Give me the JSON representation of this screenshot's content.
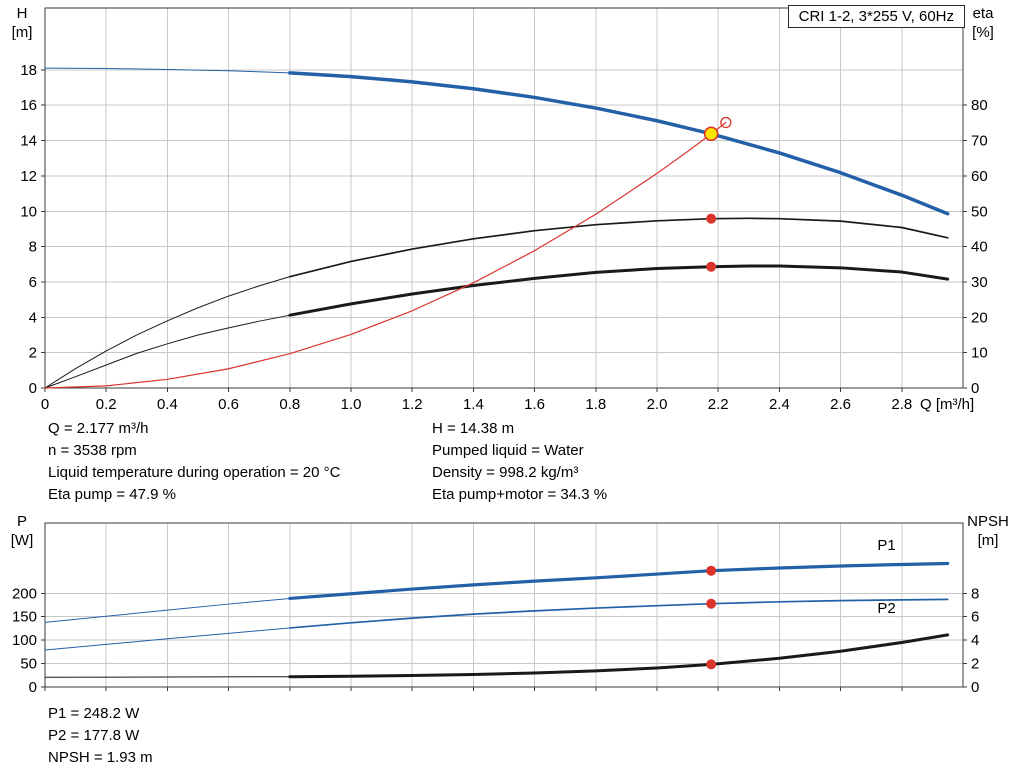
{
  "title_box": "CRI 1-2, 3*255 V, 60Hz",
  "colors": {
    "blue": "#2460a7",
    "red": "#db342c",
    "black": "#1a1a1a",
    "grid": "#c9c9c9",
    "frame": "#383838",
    "duty_yellow": "#ffe400"
  },
  "info": {
    "left": [
      "Q = 2.177 m³/h",
      "n = 3538 rpm",
      "Liquid temperature during operation = 20 °C",
      "Eta pump = 47.9 %"
    ],
    "right": [
      "H = 14.38 m",
      "Pumped liquid = Water",
      "Density = 998.2 kg/m³",
      "Eta pump+motor = 34.3 %"
    ],
    "bottom": [
      "P1 = 248.2 W",
      "P2 = 177.8 W",
      "NPSH = 1.93 m"
    ]
  },
  "chart_data": [
    {
      "type": "line",
      "title": "CRI 1-2, 3*255 V, 60Hz",
      "xlabel": "Q [m³/h]",
      "ylabel_left": [
        "H",
        "[m]"
      ],
      "ylabel_right": [
        "eta",
        "[%]"
      ],
      "xlim": [
        0,
        3.0
      ],
      "ylim_left": [
        0,
        21.5
      ],
      "ylim_right": [
        0,
        107.5
      ],
      "xticks": [
        0,
        0.2,
        0.4,
        0.6,
        0.8,
        1.0,
        1.2,
        1.4,
        1.6,
        1.8,
        2.0,
        2.2,
        2.4,
        2.6,
        2.8
      ],
      "xtick_labels": [
        "0",
        "0.2",
        "0.4",
        "0.6",
        "0.8",
        "1.0",
        "1.2",
        "1.4",
        "1.6",
        "1.8",
        "2.0",
        "2.2",
        "2.4",
        "2.6",
        "2.8"
      ],
      "yticks_left": [
        0,
        2,
        4,
        6,
        8,
        10,
        12,
        14,
        16,
        18
      ],
      "yticks_right": [
        0,
        10,
        20,
        30,
        40,
        50,
        60,
        70,
        80
      ],
      "show_x_tick_labels": true,
      "grid": true,
      "series": [
        {
          "name": "hq-curve-thin",
          "axis": "left",
          "color": "blue",
          "width": 1,
          "points": [
            [
              0,
              18.1
            ],
            [
              0.2,
              18.08
            ],
            [
              0.4,
              18.02
            ],
            [
              0.6,
              17.95
            ],
            [
              0.8,
              17.83
            ]
          ]
        },
        {
          "name": "hq-curve",
          "axis": "left",
          "color": "blue",
          "width": 3.5,
          "points": [
            [
              0.8,
              17.83
            ],
            [
              1.0,
              17.62
            ],
            [
              1.2,
              17.32
            ],
            [
              1.4,
              16.93
            ],
            [
              1.6,
              16.44
            ],
            [
              1.8,
              15.84
            ],
            [
              2.0,
              15.12
            ],
            [
              2.177,
              14.38
            ],
            [
              2.4,
              13.3
            ],
            [
              2.6,
              12.18
            ],
            [
              2.8,
              10.91
            ],
            [
              2.95,
              9.86
            ]
          ]
        },
        {
          "name": "eta-pump-thin",
          "axis": "right",
          "color": "black",
          "width": 1,
          "points": [
            [
              0,
              0
            ],
            [
              0.1,
              5.5
            ],
            [
              0.2,
              10.5
            ],
            [
              0.3,
              15
            ],
            [
              0.4,
              19
            ],
            [
              0.5,
              22.7
            ],
            [
              0.6,
              26
            ],
            [
              0.7,
              28.9
            ],
            [
              0.8,
              31.5
            ]
          ]
        },
        {
          "name": "eta-pump",
          "axis": "right",
          "color": "black",
          "width": 1.7,
          "points": [
            [
              0.8,
              31.5
            ],
            [
              1.0,
              35.8
            ],
            [
              1.2,
              39.3
            ],
            [
              1.4,
              42.2
            ],
            [
              1.6,
              44.5
            ],
            [
              1.8,
              46.2
            ],
            [
              2.0,
              47.3
            ],
            [
              2.177,
              47.9
            ],
            [
              2.3,
              48.0
            ],
            [
              2.4,
              47.9
            ],
            [
              2.6,
              47.2
            ],
            [
              2.8,
              45.4
            ],
            [
              2.95,
              42.5
            ]
          ]
        },
        {
          "name": "eta-pump-motor-thin",
          "axis": "right",
          "color": "black",
          "width": 1,
          "points": [
            [
              0,
              0
            ],
            [
              0.1,
              3.2
            ],
            [
              0.2,
              6.5
            ],
            [
              0.3,
              9.8
            ],
            [
              0.4,
              12.5
            ],
            [
              0.5,
              15
            ],
            [
              0.6,
              17
            ],
            [
              0.7,
              18.9
            ],
            [
              0.8,
              20.6
            ]
          ]
        },
        {
          "name": "eta-pump-motor",
          "axis": "right",
          "color": "black",
          "width": 3,
          "points": [
            [
              0.8,
              20.6
            ],
            [
              1.0,
              23.8
            ],
            [
              1.2,
              26.6
            ],
            [
              1.4,
              29.0
            ],
            [
              1.6,
              31.0
            ],
            [
              1.8,
              32.7
            ],
            [
              2.0,
              33.8
            ],
            [
              2.177,
              34.3
            ],
            [
              2.3,
              34.5
            ],
            [
              2.4,
              34.5
            ],
            [
              2.6,
              34.0
            ],
            [
              2.8,
              32.8
            ],
            [
              2.95,
              30.8
            ]
          ]
        },
        {
          "name": "system-curve",
          "axis": "left",
          "color": "red",
          "width": 1.2,
          "points": [
            [
              0,
              0
            ],
            [
              0.2,
              0.12
            ],
            [
              0.4,
              0.49
            ],
            [
              0.6,
              1.09
            ],
            [
              0.8,
              1.94
            ],
            [
              1.0,
              3.03
            ],
            [
              1.2,
              4.37
            ],
            [
              1.4,
              5.95
            ],
            [
              1.6,
              7.77
            ],
            [
              1.8,
              9.83
            ],
            [
              2.0,
              12.14
            ],
            [
              2.1,
              13.38
            ],
            [
              2.177,
              14.38
            ],
            [
              2.225,
              15.02
            ]
          ]
        }
      ],
      "markers": [
        {
          "name": "system-curve-end-circle",
          "x": 2.225,
          "y": 15.02,
          "axis": "left",
          "r": 5,
          "fill": "none",
          "stroke": "red",
          "sw": 1.3
        },
        {
          "name": "duty-point",
          "x": 2.177,
          "y": 14.38,
          "axis": "left",
          "r": 6.5,
          "fill": "duty_yellow",
          "stroke": "red",
          "sw": 1.6
        },
        {
          "name": "eta-pump-dot",
          "x": 2.177,
          "y": 47.9,
          "axis": "right",
          "r": 5,
          "fill": "red"
        },
        {
          "name": "eta-pump-motor-dot",
          "x": 2.177,
          "y": 34.3,
          "axis": "right",
          "r": 5,
          "fill": "red"
        }
      ],
      "labels": []
    },
    {
      "type": "line",
      "title": "",
      "xlabel": "",
      "ylabel_left": [
        "P",
        "[W]"
      ],
      "ylabel_right": [
        "NPSH",
        "[m]"
      ],
      "xlim": [
        0,
        3.0
      ],
      "ylim_left": [
        0,
        350
      ],
      "ylim_right": [
        0,
        14
      ],
      "xticks": [
        0,
        0.2,
        0.4,
        0.6,
        0.8,
        1.0,
        1.2,
        1.4,
        1.6,
        1.8,
        2.0,
        2.2,
        2.4,
        2.6,
        2.8
      ],
      "xtick_labels": [
        "0",
        "0.2",
        "0.4",
        "0.6",
        "0.8",
        "1.0",
        "1.2",
        "1.4",
        "1.6",
        "1.8",
        "2.0",
        "2.2",
        "2.4",
        "2.6",
        "2.8"
      ],
      "yticks_left": [
        0,
        50,
        100,
        150,
        200
      ],
      "yticks_right": [
        0,
        2,
        4,
        6,
        8
      ],
      "show_x_tick_labels": false,
      "grid": true,
      "series": [
        {
          "name": "p1-curve-thin",
          "axis": "left",
          "color": "blue",
          "width": 1,
          "points": [
            [
              0,
              138
            ],
            [
              0.2,
              151
            ],
            [
              0.4,
              164
            ],
            [
              0.6,
              177
            ],
            [
              0.8,
              189
            ]
          ]
        },
        {
          "name": "p1-curve",
          "axis": "left",
          "color": "blue",
          "width": 3.2,
          "points": [
            [
              0.8,
              189
            ],
            [
              1.0,
              199
            ],
            [
              1.2,
              209
            ],
            [
              1.4,
              218
            ],
            [
              1.6,
              226
            ],
            [
              1.8,
              233
            ],
            [
              2.0,
              241
            ],
            [
              2.177,
              248.2
            ],
            [
              2.4,
              254
            ],
            [
              2.6,
              258.3
            ],
            [
              2.8,
              261.5
            ],
            [
              2.95,
              263.5
            ]
          ]
        },
        {
          "name": "p2-curve-thin",
          "axis": "left",
          "color": "blue",
          "width": 1,
          "points": [
            [
              0,
              79
            ],
            [
              0.2,
              91
            ],
            [
              0.4,
              103
            ],
            [
              0.6,
              114.5
            ],
            [
              0.8,
              126
            ]
          ]
        },
        {
          "name": "p2-curve",
          "axis": "left",
          "color": "blue",
          "width": 1.7,
          "points": [
            [
              0.8,
              126
            ],
            [
              1.0,
              137
            ],
            [
              1.2,
              147
            ],
            [
              1.4,
              155.5
            ],
            [
              1.6,
              162.5
            ],
            [
              1.8,
              168.5
            ],
            [
              2.0,
              173.5
            ],
            [
              2.177,
              177.8
            ],
            [
              2.4,
              181.8
            ],
            [
              2.6,
              184.3
            ],
            [
              2.8,
              186
            ],
            [
              2.95,
              187
            ]
          ]
        },
        {
          "name": "npsh-curve-thin",
          "axis": "right",
          "color": "black",
          "width": 1,
          "points": [
            [
              0,
              0.83
            ],
            [
              0.4,
              0.85
            ],
            [
              0.8,
              0.88
            ]
          ]
        },
        {
          "name": "npsh-curve",
          "axis": "right",
          "color": "black",
          "width": 3,
          "points": [
            [
              0.8,
              0.88
            ],
            [
              1.0,
              0.92
            ],
            [
              1.2,
              0.98
            ],
            [
              1.4,
              1.07
            ],
            [
              1.6,
              1.2
            ],
            [
              1.8,
              1.38
            ],
            [
              2.0,
              1.62
            ],
            [
              2.177,
              1.93
            ],
            [
              2.4,
              2.45
            ],
            [
              2.6,
              3.05
            ],
            [
              2.8,
              3.8
            ],
            [
              2.95,
              4.45
            ]
          ]
        }
      ],
      "markers": [
        {
          "name": "p1-dot",
          "x": 2.177,
          "y": 248.2,
          "axis": "left",
          "r": 5,
          "fill": "red"
        },
        {
          "name": "p2-dot",
          "x": 2.177,
          "y": 177.8,
          "axis": "left",
          "r": 5,
          "fill": "red"
        },
        {
          "name": "npsh-dot",
          "x": 2.177,
          "y": 1.93,
          "axis": "right",
          "r": 5,
          "fill": "red"
        }
      ],
      "labels": [
        {
          "name": "p1-label",
          "x": 2.72,
          "y": 292,
          "axis": "left",
          "text": "P1",
          "color": "blue"
        },
        {
          "name": "p2-label",
          "x": 2.72,
          "y": 158,
          "axis": "left",
          "text": "P2",
          "color": "blue"
        }
      ]
    }
  ]
}
